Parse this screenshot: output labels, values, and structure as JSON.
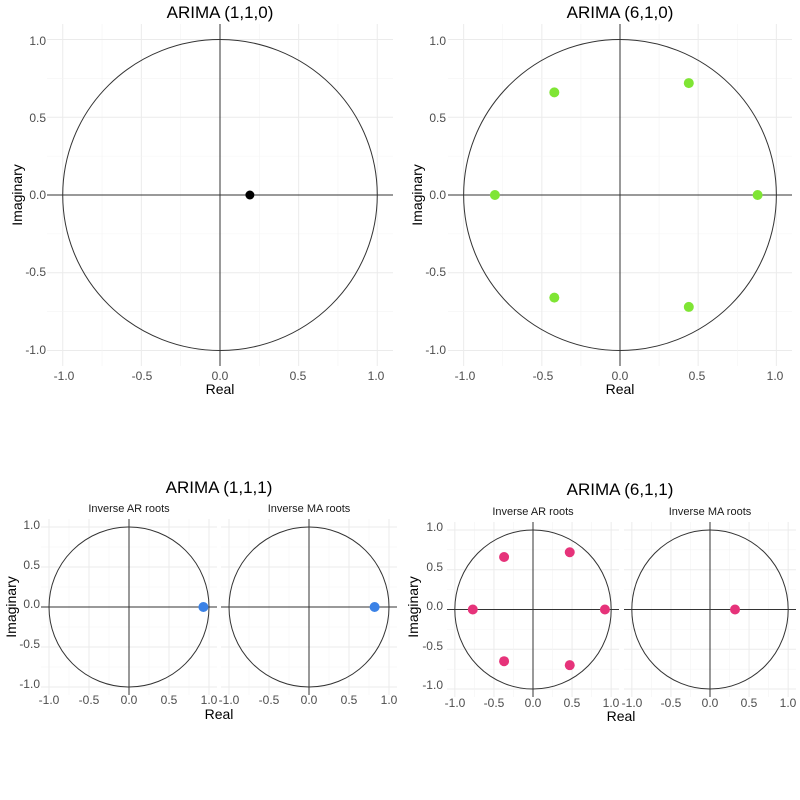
{
  "chart_data": [
    {
      "type": "scatter",
      "title": "ARIMA (1,1,0)",
      "xlabel": "Real",
      "ylabel": "Imaginary",
      "xlim": [
        -1.1,
        1.1
      ],
      "ylim": [
        -1.1,
        1.1
      ],
      "grid": true,
      "unit_circle": true,
      "panels": [
        {
          "label": "",
          "color": "#000000",
          "points": [
            {
              "x": 0.19,
              "y": 0.0
            }
          ]
        }
      ],
      "ticks": [
        -1.0,
        -0.5,
        0.0,
        0.5,
        1.0
      ],
      "tick_labels": [
        "-1.0",
        "-0.5",
        "0.0",
        "0.5",
        "1.0"
      ]
    },
    {
      "type": "scatter",
      "title": "ARIMA (6,1,0)",
      "xlabel": "Real",
      "ylabel": "Imaginary",
      "xlim": [
        -1.1,
        1.1
      ],
      "ylim": [
        -1.1,
        1.1
      ],
      "grid": true,
      "unit_circle": true,
      "panels": [
        {
          "label": "",
          "color": "#7fe534",
          "points": [
            {
              "x": 0.44,
              "y": 0.72
            },
            {
              "x": 0.44,
              "y": -0.72
            },
            {
              "x": -0.42,
              "y": 0.66
            },
            {
              "x": -0.42,
              "y": -0.66
            },
            {
              "x": 0.88,
              "y": 0.0
            },
            {
              "x": -0.8,
              "y": 0.0
            }
          ]
        }
      ],
      "ticks": [
        -1.0,
        -0.5,
        0.0,
        0.5,
        1.0
      ],
      "tick_labels": [
        "-1.0",
        "-0.5",
        "0.0",
        "0.5",
        "1.0"
      ]
    },
    {
      "type": "scatter",
      "title": "ARIMA (1,1,1)",
      "xlabel": "Real",
      "ylabel": "Imaginary",
      "xlim": [
        -1.1,
        1.1
      ],
      "ylim": [
        -1.1,
        1.1
      ],
      "grid": true,
      "unit_circle": true,
      "panels": [
        {
          "label": "Inverse AR roots",
          "color": "#3b82e6",
          "points": [
            {
              "x": 0.93,
              "y": 0.0
            }
          ]
        },
        {
          "label": "Inverse MA roots",
          "color": "#3b82e6",
          "points": [
            {
              "x": 0.82,
              "y": 0.0
            }
          ]
        }
      ],
      "ticks": [
        -1.0,
        -0.5,
        0.0,
        0.5,
        1.0
      ],
      "tick_labels": [
        "-1.0",
        "-0.5",
        "0.0",
        "0.5",
        "1.0"
      ]
    },
    {
      "type": "scatter",
      "title": "ARIMA (6,1,1)",
      "xlabel": "Real",
      "ylabel": "Imaginary",
      "xlim": [
        -1.1,
        1.1
      ],
      "ylim": [
        -1.1,
        1.1
      ],
      "grid": true,
      "unit_circle": true,
      "panels": [
        {
          "label": "Inverse AR roots",
          "color": "#e6337a",
          "points": [
            {
              "x": 0.47,
              "y": 0.72
            },
            {
              "x": 0.47,
              "y": -0.7
            },
            {
              "x": -0.37,
              "y": 0.66
            },
            {
              "x": -0.37,
              "y": -0.65
            },
            {
              "x": 0.92,
              "y": 0.0
            },
            {
              "x": -0.77,
              "y": 0.0
            }
          ]
        },
        {
          "label": "Inverse MA roots",
          "color": "#e6337a",
          "points": [
            {
              "x": 0.32,
              "y": 0.0
            }
          ]
        }
      ],
      "ticks": [
        -1.0,
        -0.5,
        0.0,
        0.5,
        1.0
      ],
      "tick_labels": [
        "-1.0",
        "-0.5",
        "0.0",
        "0.5",
        "1.0"
      ]
    }
  ]
}
